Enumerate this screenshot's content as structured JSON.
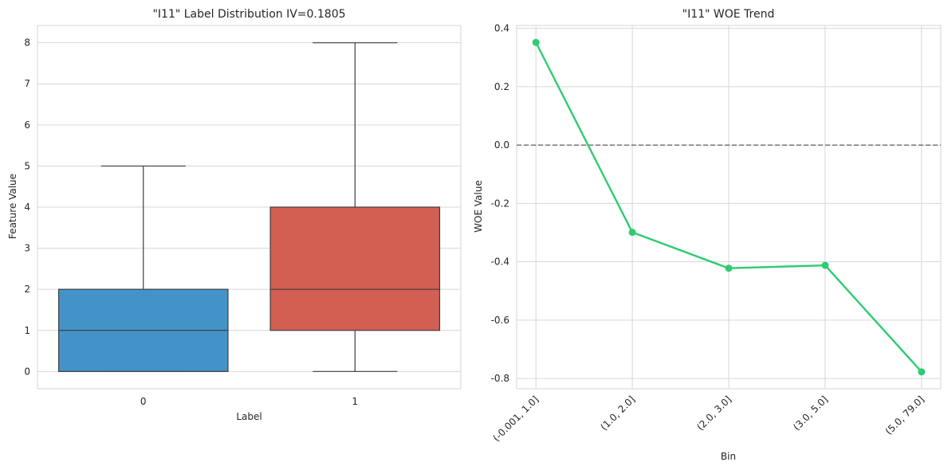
{
  "chart_data": [
    {
      "type": "box",
      "title": "\"I11\" Label Distribution IV=0.1805",
      "xlabel": "Label",
      "ylabel": "Feature Value",
      "categories": [
        "0",
        "1"
      ],
      "ylim": [
        -0.42,
        8.42
      ],
      "yticks": [
        "0",
        "1",
        "2",
        "3",
        "4",
        "5",
        "6",
        "7",
        "8"
      ],
      "boxes": [
        {
          "label": "0",
          "min": 0,
          "q1": 0,
          "median": 1,
          "q3": 2,
          "max": 5,
          "color": "#4393c9"
        },
        {
          "label": "1",
          "min": 0,
          "q1": 1,
          "median": 2,
          "q3": 4,
          "max": 8,
          "color": "#d35e52"
        }
      ],
      "grid": true
    },
    {
      "type": "line",
      "title": "\"I11\" WOE Trend",
      "xlabel": "Bin",
      "ylabel": "WOE Value",
      "categories": [
        "(-0.001, 1.0]",
        "(1.0, 2.0]",
        "(2.0, 3.0]",
        "(3.0, 5.0]",
        "(5.0, 79.0]"
      ],
      "values": [
        0.352,
        -0.299,
        -0.422,
        -0.412,
        -0.777
      ],
      "ylim": [
        -0.835,
        0.41
      ],
      "yticks": [
        "0.4",
        "0.2",
        "0.0",
        "-0.2",
        "-0.4",
        "-0.6",
        "-0.8"
      ],
      "reference_line": 0,
      "color": "#2ecc71",
      "grid": true
    }
  ]
}
